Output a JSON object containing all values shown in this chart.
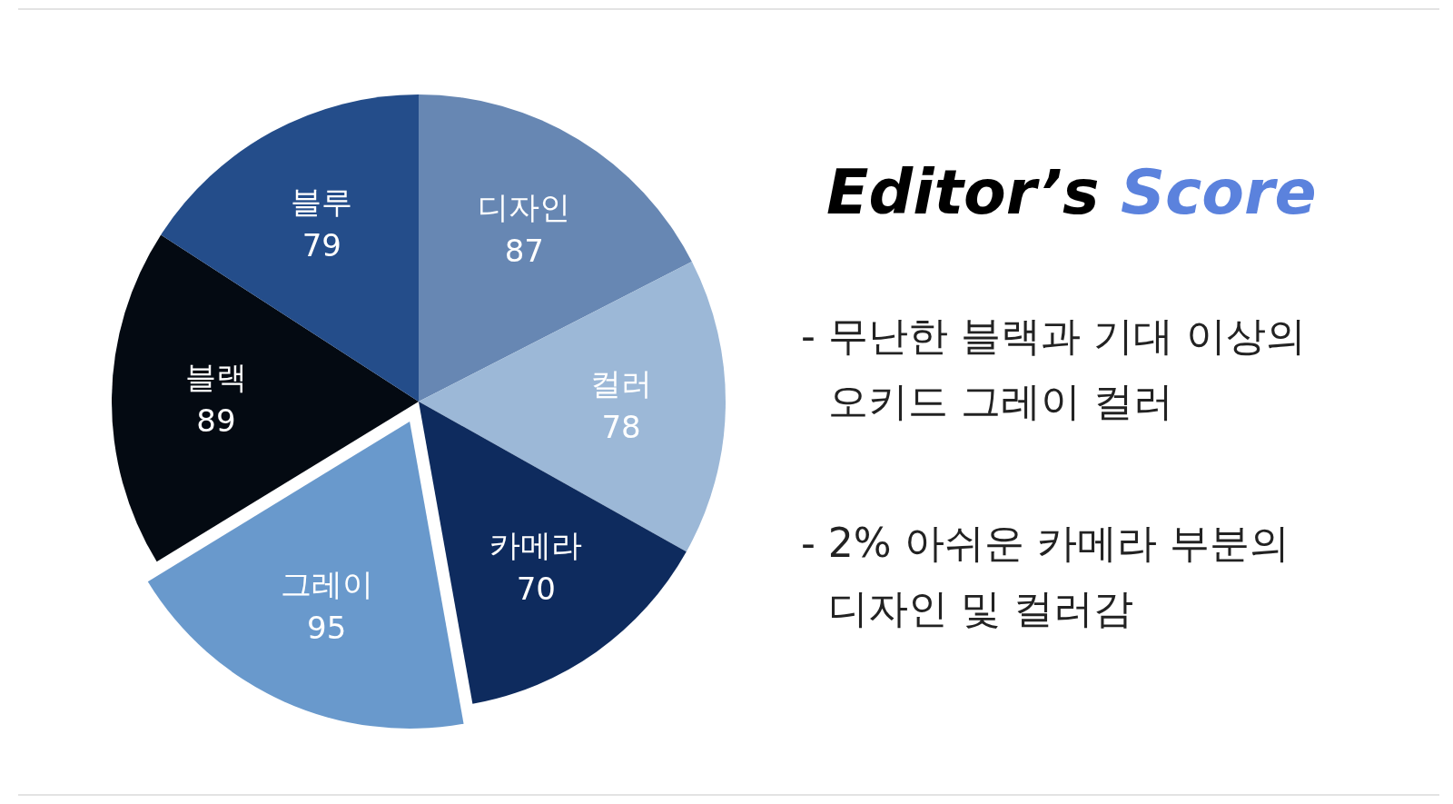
{
  "chart_data": {
    "type": "pie",
    "title": "Editor’s Score",
    "categories": [
      "디자인",
      "컬러",
      "카메라",
      "그레이",
      "블랙",
      "블루"
    ],
    "values": [
      87,
      78,
      70,
      95,
      89,
      79
    ],
    "colors": [
      "#6787b3",
      "#9cb8d7",
      "#0e2b5e",
      "#6999cc",
      "#040a12",
      "#244d8a"
    ],
    "data_labels": true,
    "annotations": [
      "- 무난한 블랙과 기대 이상의\n오키드 그레이 컬러",
      "- 2% 아쉬운 카메라 부분의\n디자인 및 컬러감"
    ]
  }
}
